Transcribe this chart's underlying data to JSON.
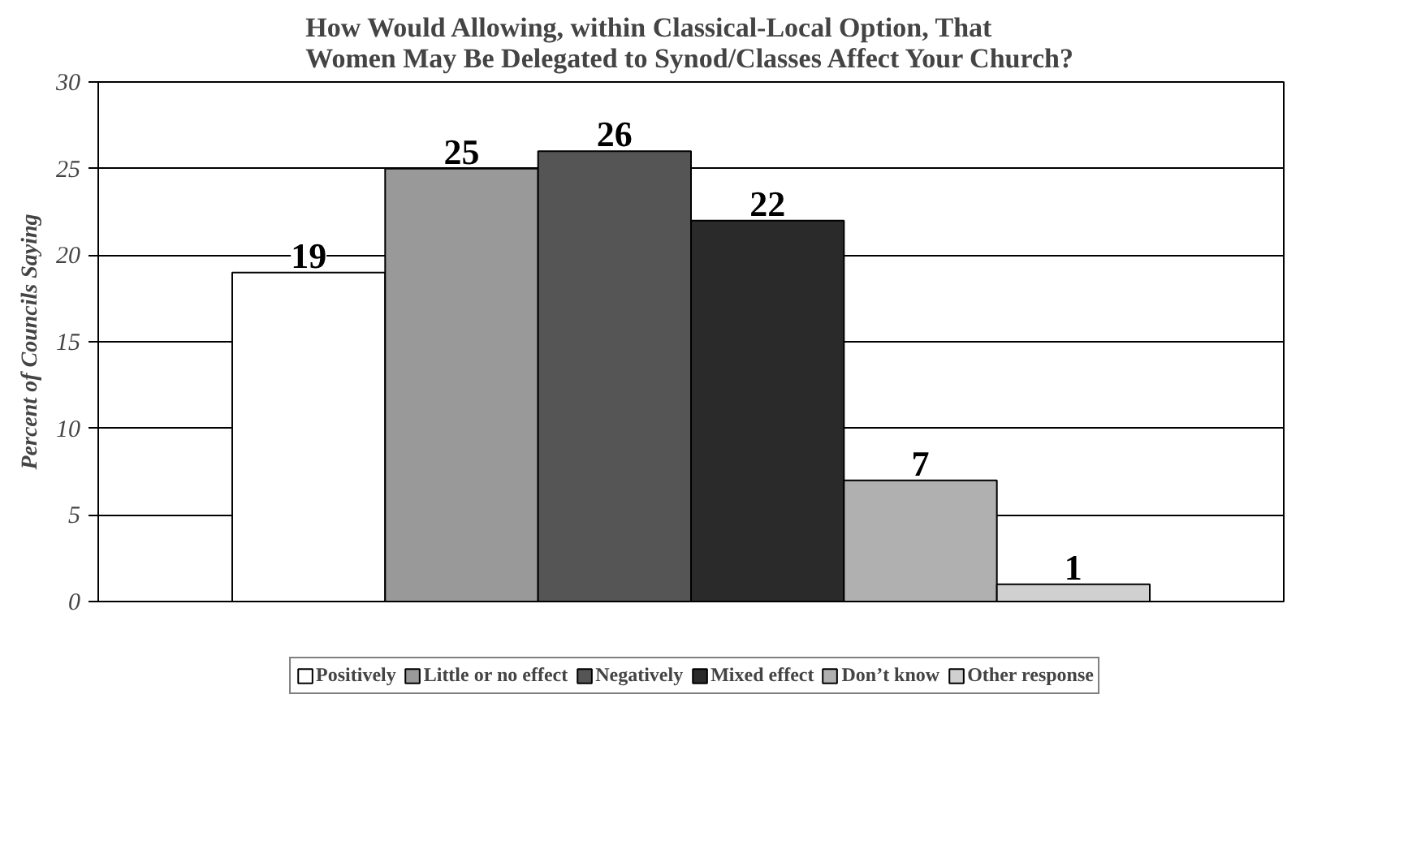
{
  "chart_data": {
    "type": "bar",
    "title": "How Would Allowing, within Classical-Local Option, That\nWomen May Be Delegated to Synod/Classes Affect Your Church?",
    "ylabel": "Percent of Councils Saying",
    "categories": [
      null
    ],
    "series": [
      {
        "name": "Positively",
        "color": "#ffffff",
        "values": [
          19
        ]
      },
      {
        "name": "Little or no effect",
        "color": "#999999",
        "values": [
          25
        ]
      },
      {
        "name": "Negatively",
        "color": "#555555",
        "values": [
          26
        ]
      },
      {
        "name": "Mixed effect",
        "color": "#2a2a2a",
        "values": [
          22
        ]
      },
      {
        "name": "Don’t know",
        "color": "#b0b0b0",
        "values": [
          7
        ]
      },
      {
        "name": "Other response",
        "color": "#d0d0d0",
        "values": [
          1
        ]
      }
    ],
    "ylim": [
      0,
      30
    ],
    "yticks": [
      0,
      5,
      10,
      15,
      20,
      25,
      30
    ],
    "grid": "y",
    "legend": "bottom",
    "data_labels": true
  }
}
